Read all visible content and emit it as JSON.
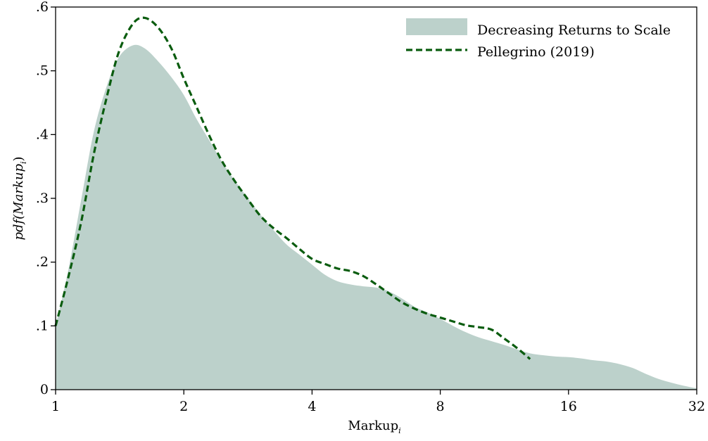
{
  "chart_data": {
    "type": "area",
    "title": "",
    "xlabel": "Markup",
    "xlabel_sub": "i",
    "ylabel": "pdf(Markup",
    "ylabel_sub": "i",
    "ylabel_close": ")",
    "x_scale": "log2",
    "xlim": [
      1,
      32
    ],
    "ylim": [
      0,
      0.6
    ],
    "x_ticks": [
      1,
      2,
      4,
      8,
      16,
      32
    ],
    "x_tick_labels": [
      "1",
      "2",
      "4",
      "8",
      "16",
      "32"
    ],
    "y_ticks": [
      0,
      0.1,
      0.2,
      0.3,
      0.4,
      0.5,
      0.6
    ],
    "y_tick_labels": [
      "0",
      ".1",
      ".2",
      ".3",
      ".4",
      ".5",
      ".6"
    ],
    "grid": false,
    "legend_position": "top-right",
    "series": [
      {
        "name": "Decreasing Returns to Scale",
        "style": "filled-area",
        "color": "#bcd1cb",
        "x": [
          1.0,
          1.07,
          1.15,
          1.23,
          1.32,
          1.41,
          1.52,
          1.62,
          1.74,
          1.87,
          2.0,
          2.14,
          2.3,
          2.46,
          2.64,
          2.83,
          3.03,
          3.25,
          3.48,
          3.73,
          4.0,
          4.29,
          4.59,
          4.92,
          5.28,
          5.66,
          6.06,
          6.5,
          6.96,
          7.46,
          8.0,
          8.57,
          9.19,
          9.85,
          10.56,
          11.31,
          12.13,
          13.0,
          13.93,
          14.93,
          16.0,
          17.15,
          18.38,
          19.7,
          21.11,
          22.63,
          24.25,
          25.99,
          27.86,
          29.86,
          32.0
        ],
        "y": [
          0.1,
          0.186,
          0.3,
          0.405,
          0.477,
          0.522,
          0.54,
          0.535,
          0.515,
          0.49,
          0.462,
          0.425,
          0.39,
          0.357,
          0.327,
          0.3,
          0.274,
          0.25,
          0.228,
          0.212,
          0.196,
          0.18,
          0.17,
          0.165,
          0.162,
          0.16,
          0.154,
          0.143,
          0.13,
          0.121,
          0.111,
          0.1,
          0.09,
          0.082,
          0.076,
          0.07,
          0.063,
          0.057,
          0.054,
          0.052,
          0.051,
          0.049,
          0.046,
          0.044,
          0.04,
          0.034,
          0.025,
          0.017,
          0.011,
          0.006,
          0.002
        ]
      },
      {
        "name": "Pellegrino (2019)",
        "style": "dashed-line",
        "color": "#0a5c0f",
        "x": [
          1.0,
          1.07,
          1.15,
          1.23,
          1.32,
          1.41,
          1.52,
          1.62,
          1.74,
          1.87,
          2.0,
          2.14,
          2.3,
          2.46,
          2.64,
          2.83,
          3.03,
          3.25,
          3.48,
          3.73,
          4.0,
          4.29,
          4.59,
          4.92,
          5.28,
          5.66,
          6.06,
          6.5,
          6.96,
          7.46,
          8.0,
          8.57,
          9.19,
          9.85,
          10.56,
          11.31,
          12.13,
          13.0
        ],
        "y": [
          0.1,
          0.175,
          0.265,
          0.37,
          0.46,
          0.531,
          0.574,
          0.583,
          0.568,
          0.535,
          0.488,
          0.444,
          0.397,
          0.358,
          0.326,
          0.298,
          0.272,
          0.253,
          0.238,
          0.221,
          0.205,
          0.197,
          0.19,
          0.186,
          0.178,
          0.165,
          0.151,
          0.137,
          0.127,
          0.119,
          0.113,
          0.107,
          0.101,
          0.098,
          0.094,
          0.08,
          0.065,
          0.048
        ]
      }
    ]
  }
}
